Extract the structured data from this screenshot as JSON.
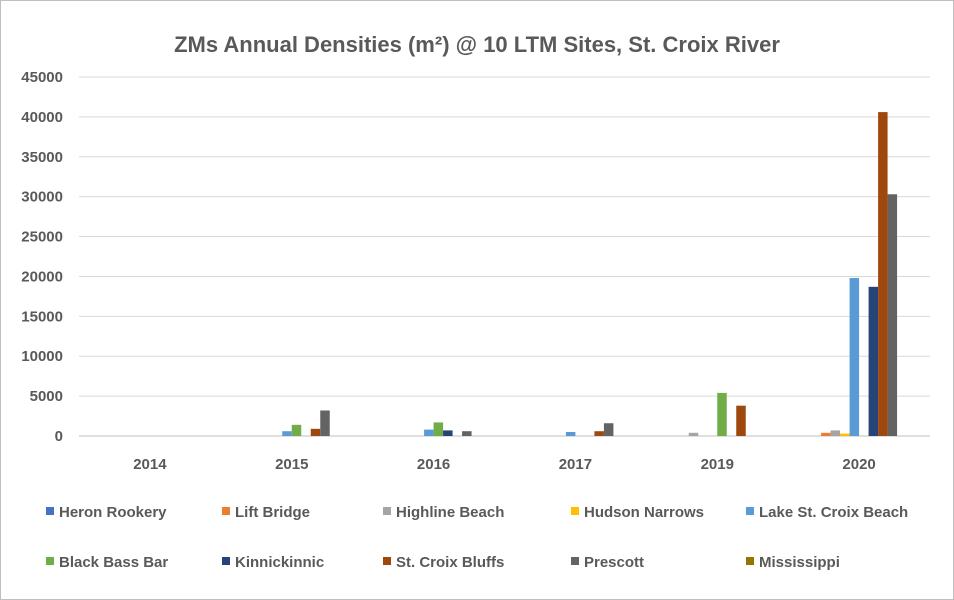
{
  "chart_data": {
    "type": "bar",
    "title": "ZMs Annual Densities (m²) @ 10 LTM Sites, St. Croix River",
    "xlabel": "",
    "ylabel": "",
    "ylim": [
      0,
      45000
    ],
    "yticks": [
      "0",
      "5000",
      "10000",
      "15000",
      "20000",
      "25000",
      "30000",
      "35000",
      "40000",
      "45000"
    ],
    "categories": [
      "2014",
      "2015",
      "2016",
      "2017",
      "2019",
      "2020"
    ],
    "grid": true,
    "legend_position": "bottom",
    "series": [
      {
        "name": "Heron Rookery",
        "color": "#4472c4",
        "values": [
          0,
          0,
          0,
          0,
          0,
          0
        ]
      },
      {
        "name": "Lift Bridge",
        "color": "#ed7d31",
        "values": [
          0,
          0,
          0,
          0,
          0,
          400
        ]
      },
      {
        "name": "Highline Beach",
        "color": "#a5a5a5",
        "values": [
          0,
          0,
          0,
          0,
          400,
          700
        ]
      },
      {
        "name": "Hudson Narrows",
        "color": "#ffc000",
        "values": [
          0,
          0,
          0,
          0,
          0,
          300
        ]
      },
      {
        "name": "Lake St. Croix Beach",
        "color": "#5b9bd5",
        "values": [
          0,
          600,
          800,
          500,
          0,
          19800
        ]
      },
      {
        "name": "Black Bass Bar",
        "color": "#70ad47",
        "values": [
          0,
          1400,
          1700,
          0,
          5400,
          0
        ]
      },
      {
        "name": "Kinnickinnic",
        "color": "#264478",
        "values": [
          0,
          0,
          700,
          0,
          0,
          18700
        ]
      },
      {
        "name": "St. Croix Bluffs",
        "color": "#9e480e",
        "values": [
          0,
          900,
          0,
          600,
          3800,
          40600
        ]
      },
      {
        "name": "Prescott",
        "color": "#636363",
        "values": [
          0,
          3200,
          600,
          1600,
          0,
          30300
        ]
      },
      {
        "name": "Mississippi",
        "color": "#997300",
        "values": [
          0,
          0,
          0,
          0,
          0,
          0
        ]
      }
    ]
  }
}
